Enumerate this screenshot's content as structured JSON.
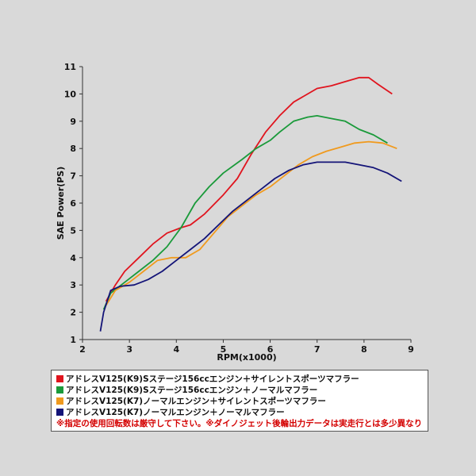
{
  "chart_data": {
    "type": "line",
    "title": "",
    "xlabel": "RPM(x1000)",
    "ylabel": "SAE Power(PS)",
    "xlim": [
      2,
      9
    ],
    "ylim": [
      1,
      11
    ],
    "x_ticks": [
      "2",
      "3",
      "4",
      "5",
      "6",
      "7",
      "8",
      "9"
    ],
    "y_ticks": [
      "1",
      "2",
      "3",
      "4",
      "5",
      "6",
      "7",
      "8",
      "9",
      "10",
      "11"
    ],
    "grid": false,
    "series": [
      {
        "name": "アドレスV125(K9)Sステージ156ccエンジン＋サイレントスポーツマフラー",
        "color": "#e0141e",
        "points": [
          [
            2.5,
            2.4
          ],
          [
            2.7,
            3.0
          ],
          [
            2.9,
            3.5
          ],
          [
            3.2,
            4.0
          ],
          [
            3.5,
            4.5
          ],
          [
            3.8,
            4.9
          ],
          [
            4.1,
            5.1
          ],
          [
            4.3,
            5.2
          ],
          [
            4.6,
            5.6
          ],
          [
            5.0,
            6.3
          ],
          [
            5.3,
            6.9
          ],
          [
            5.6,
            7.8
          ],
          [
            5.9,
            8.6
          ],
          [
            6.2,
            9.2
          ],
          [
            6.5,
            9.7
          ],
          [
            6.8,
            10.0
          ],
          [
            7.0,
            10.2
          ],
          [
            7.3,
            10.3
          ],
          [
            7.6,
            10.45
          ],
          [
            7.9,
            10.6
          ],
          [
            8.1,
            10.6
          ],
          [
            8.3,
            10.35
          ],
          [
            8.6,
            10.0
          ]
        ]
      },
      {
        "name": "アドレスV125(K9)Sステージ156ccエンジン＋ノーマルマフラー",
        "color": "#1a9a3a",
        "points": [
          [
            2.45,
            2.1
          ],
          [
            2.6,
            2.7
          ],
          [
            2.9,
            3.1
          ],
          [
            3.2,
            3.5
          ],
          [
            3.5,
            3.9
          ],
          [
            3.8,
            4.4
          ],
          [
            4.1,
            5.1
          ],
          [
            4.4,
            6.0
          ],
          [
            4.7,
            6.6
          ],
          [
            5.0,
            7.1
          ],
          [
            5.4,
            7.6
          ],
          [
            5.7,
            8.0
          ],
          [
            6.0,
            8.3
          ],
          [
            6.2,
            8.6
          ],
          [
            6.5,
            9.0
          ],
          [
            6.8,
            9.15
          ],
          [
            7.0,
            9.2
          ],
          [
            7.3,
            9.1
          ],
          [
            7.6,
            9.0
          ],
          [
            7.9,
            8.7
          ],
          [
            8.2,
            8.5
          ],
          [
            8.5,
            8.2
          ]
        ]
      },
      {
        "name": "アドレスV125(K7)ノーマルエンジン＋サイレントスポーツマフラー",
        "color": "#f09a1e",
        "points": [
          [
            2.5,
            2.25
          ],
          [
            2.7,
            2.8
          ],
          [
            3.0,
            3.1
          ],
          [
            3.3,
            3.5
          ],
          [
            3.6,
            3.9
          ],
          [
            3.9,
            4.0
          ],
          [
            4.2,
            4.0
          ],
          [
            4.5,
            4.3
          ],
          [
            4.8,
            4.9
          ],
          [
            5.1,
            5.5
          ],
          [
            5.4,
            5.9
          ],
          [
            5.7,
            6.3
          ],
          [
            6.0,
            6.6
          ],
          [
            6.3,
            7.0
          ],
          [
            6.6,
            7.4
          ],
          [
            6.9,
            7.7
          ],
          [
            7.2,
            7.9
          ],
          [
            7.5,
            8.05
          ],
          [
            7.8,
            8.2
          ],
          [
            8.1,
            8.25
          ],
          [
            8.4,
            8.2
          ],
          [
            8.7,
            8.0
          ]
        ]
      },
      {
        "name": "アドレスV125(K7)ノーマルエンジン＋ノーマルマフラー",
        "color": "#141478",
        "points": [
          [
            2.38,
            1.3
          ],
          [
            2.45,
            2.0
          ],
          [
            2.6,
            2.8
          ],
          [
            2.8,
            2.95
          ],
          [
            3.1,
            3.0
          ],
          [
            3.4,
            3.2
          ],
          [
            3.7,
            3.5
          ],
          [
            4.0,
            3.9
          ],
          [
            4.3,
            4.3
          ],
          [
            4.6,
            4.7
          ],
          [
            4.9,
            5.2
          ],
          [
            5.2,
            5.7
          ],
          [
            5.5,
            6.1
          ],
          [
            5.8,
            6.5
          ],
          [
            6.1,
            6.9
          ],
          [
            6.4,
            7.2
          ],
          [
            6.7,
            7.4
          ],
          [
            7.0,
            7.5
          ],
          [
            7.3,
            7.5
          ],
          [
            7.6,
            7.5
          ],
          [
            7.9,
            7.4
          ],
          [
            8.2,
            7.3
          ],
          [
            8.5,
            7.1
          ],
          [
            8.8,
            6.8
          ]
        ]
      }
    ],
    "note": "※指定の使用回転数は厳守して下さい。※ダイノジェット後輪出力データは実走行とは多少異なります。",
    "note_color": "#d40000",
    "background_color": "#d9d9d9"
  }
}
